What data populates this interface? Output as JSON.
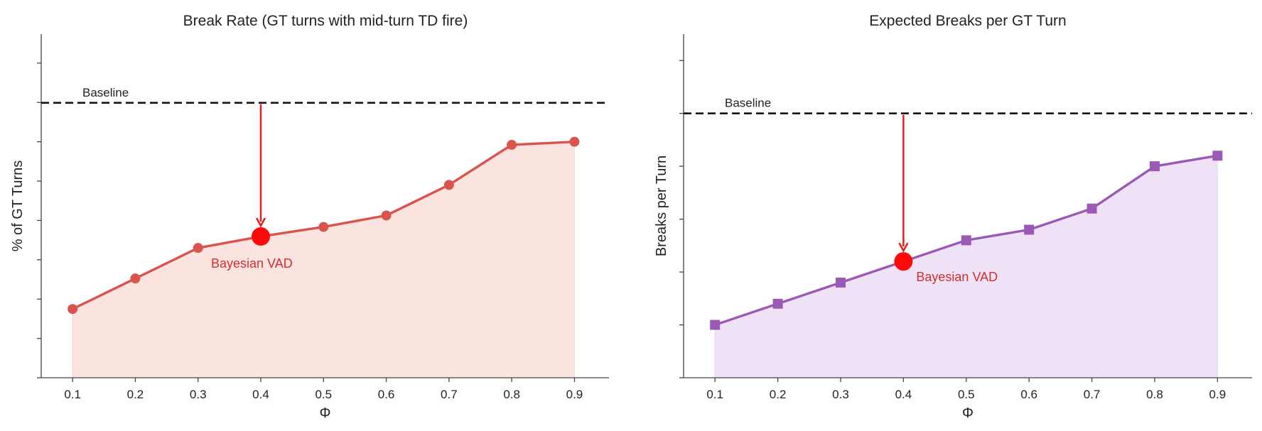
{
  "colors": {
    "left_line": "#d9544d",
    "left_fill": "#fbe3e0",
    "right_line": "#9b59b6",
    "right_fill": "#efe2f6",
    "highlight": "#ff0a0a",
    "arrow": "#e02020",
    "annotation_text": "#d03030",
    "baseline": "#111111",
    "axis": "#444444"
  },
  "chart_data": [
    {
      "type": "area",
      "marker": "circle",
      "title": "Break Rate (GT turns with mid-turn TD fire)",
      "xlabel": "Φ",
      "ylabel": "% of GT Turns",
      "x": [
        0.1,
        0.2,
        0.3,
        0.4,
        0.5,
        0.6,
        0.7,
        0.8,
        0.9
      ],
      "x_tick_labels": [
        "0.1",
        "0.2",
        "0.3",
        "0.4",
        "0.5",
        "0.6",
        "0.7",
        "0.8",
        "0.9"
      ],
      "values": [
        18,
        26,
        34,
        37,
        39.5,
        42.5,
        50.5,
        61,
        61.8
      ],
      "xlim": [
        0.05,
        0.955
      ],
      "ylim": [
        0,
        90
      ],
      "y_ticks": [
        0,
        10.3,
        20.6,
        30.9,
        41.2,
        51.5,
        61.8,
        72.1,
        82.4
      ],
      "baseline": {
        "label": "Baseline",
        "value": 72
      },
      "highlight": {
        "x": 0.4,
        "label": "Bayesian VAD"
      }
    },
    {
      "type": "area",
      "marker": "square",
      "title": "Expected Breaks per GT Turn",
      "xlabel": "Φ",
      "ylabel": "Breaks per Turn",
      "x": [
        0.1,
        0.2,
        0.3,
        0.4,
        0.5,
        0.6,
        0.7,
        0.8,
        0.9
      ],
      "x_tick_labels": [
        "0.1",
        "0.2",
        "0.3",
        "0.4",
        "0.5",
        "0.6",
        "0.7",
        "0.8",
        "0.9"
      ],
      "values": [
        0.1,
        0.14,
        0.18,
        0.22,
        0.26,
        0.28,
        0.32,
        0.4,
        0.42
      ],
      "xlim": [
        0.05,
        0.955
      ],
      "ylim": [
        0,
        0.65
      ],
      "y_ticks": [
        0,
        0.1,
        0.2,
        0.3,
        0.4,
        0.5,
        0.6
      ],
      "baseline": {
        "label": "Baseline",
        "value": 0.5
      },
      "highlight": {
        "x": 0.4,
        "label": "Bayesian VAD"
      }
    }
  ]
}
